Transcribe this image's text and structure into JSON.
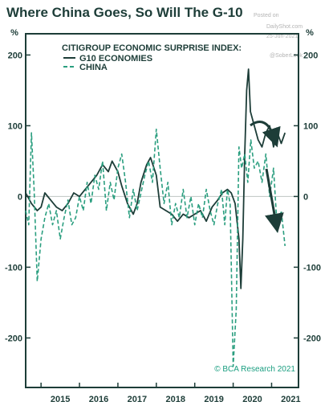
{
  "header": {
    "title": "Where China Goes, So Will The G-10"
  },
  "watermark": {
    "posted_on": "Posted on",
    "site": "DailyShot.com",
    "date": "25-Jun-2021",
    "handle": "@SoberLook"
  },
  "source": "© BCA Research 2021",
  "colors": {
    "g10": "#1d3d38",
    "china": "#2a9e7f",
    "frame": "#1d3d38",
    "arrow": "#1d3d38"
  },
  "chart_data": {
    "type": "line",
    "title": "",
    "legend_title": "CITIGROUP ECONOMIC SURPRISE INDEX:",
    "legend_position": "top-right",
    "ylabel_left": "%",
    "ylabel_right": "%",
    "ylim": [
      -270,
      230
    ],
    "yticks": [
      -200,
      -100,
      0,
      100,
      200
    ],
    "xlim": [
      2014.6,
      2021.7
    ],
    "xticks": [
      {
        "label": "2015",
        "pos": 2015.0
      },
      {
        "label": "2016",
        "pos": 2016.0
      },
      {
        "label": "2017",
        "pos": 2017.0
      },
      {
        "label": "2018",
        "pos": 2018.0
      },
      {
        "label": "2019",
        "pos": 2019.0
      },
      {
        "label": "2020",
        "pos": 2020.0
      },
      {
        "label": "2021",
        "pos": 2021.0
      }
    ],
    "grid": false,
    "zero_line": true,
    "series": [
      {
        "name": "G10 ECONOMIES",
        "style": "solid",
        "x": [
          2014.6,
          2014.75,
          2014.9,
          2015.0,
          2015.1,
          2015.25,
          2015.4,
          2015.55,
          2015.7,
          2015.85,
          2016.0,
          2016.15,
          2016.3,
          2016.45,
          2016.6,
          2016.75,
          2016.85,
          2017.0,
          2017.1,
          2017.25,
          2017.4,
          2017.5,
          2017.6,
          2017.75,
          2017.85,
          2018.0,
          2018.1,
          2018.25,
          2018.4,
          2018.55,
          2018.7,
          2018.85,
          2019.0,
          2019.15,
          2019.3,
          2019.45,
          2019.6,
          2019.72,
          2019.85,
          2019.95,
          2020.05,
          2020.15,
          2020.2,
          2020.25,
          2020.3,
          2020.35,
          2020.4,
          2020.45,
          2020.55,
          2020.65,
          2020.75,
          2020.85,
          2020.95,
          2021.05,
          2021.15,
          2021.25,
          2021.35
        ],
        "values": [
          5,
          -10,
          -20,
          -15,
          5,
          -5,
          -15,
          -20,
          -10,
          5,
          0,
          10,
          20,
          30,
          45,
          35,
          50,
          35,
          15,
          -10,
          -25,
          -10,
          20,
          45,
          55,
          30,
          -15,
          -20,
          -25,
          -35,
          -25,
          -30,
          -25,
          -20,
          -35,
          -15,
          -5,
          5,
          10,
          5,
          -10,
          -60,
          -130,
          -60,
          60,
          150,
          180,
          120,
          100,
          80,
          70,
          90,
          100,
          70,
          90,
          75,
          90
        ]
      },
      {
        "name": "CHINA",
        "style": "dashed",
        "x": [
          2014.6,
          2014.68,
          2014.75,
          2014.82,
          2014.9,
          2015.0,
          2015.1,
          2015.2,
          2015.3,
          2015.4,
          2015.5,
          2015.6,
          2015.7,
          2015.8,
          2015.9,
          2016.0,
          2016.1,
          2016.2,
          2016.3,
          2016.4,
          2016.5,
          2016.6,
          2016.7,
          2016.8,
          2016.9,
          2017.0,
          2017.1,
          2017.2,
          2017.3,
          2017.4,
          2017.5,
          2017.6,
          2017.7,
          2017.8,
          2017.9,
          2018.0,
          2018.1,
          2018.2,
          2018.3,
          2018.4,
          2018.5,
          2018.6,
          2018.7,
          2018.8,
          2018.9,
          2019.0,
          2019.1,
          2019.2,
          2019.3,
          2019.4,
          2019.5,
          2019.6,
          2019.7,
          2019.78,
          2019.85,
          2019.92,
          2020.0,
          2020.08,
          2020.15,
          2020.22,
          2020.3,
          2020.38,
          2020.46,
          2020.55,
          2020.65,
          2020.75,
          2020.85,
          2020.95,
          2021.05,
          2021.15,
          2021.25,
          2021.35
        ],
        "values": [
          -20,
          -40,
          90,
          10,
          -120,
          -60,
          -30,
          -10,
          -40,
          -20,
          -60,
          -30,
          -5,
          -40,
          -30,
          0,
          -20,
          20,
          -10,
          30,
          10,
          50,
          -20,
          20,
          -5,
          40,
          60,
          20,
          -30,
          10,
          -20,
          5,
          30,
          50,
          20,
          95,
          40,
          -10,
          20,
          -40,
          -10,
          -30,
          10,
          -30,
          0,
          -40,
          -10,
          -30,
          10,
          -20,
          -40,
          -10,
          10,
          -40,
          10,
          -10,
          -240,
          -160,
          70,
          40,
          60,
          20,
          80,
          40,
          50,
          20,
          60,
          0,
          40,
          -50,
          -20,
          -70
        ]
      }
    ],
    "annotations": {
      "g10_arrow": "curved arrow trending down after 2021",
      "china_arrow": "straight arrow pointing down after 2021"
    }
  }
}
